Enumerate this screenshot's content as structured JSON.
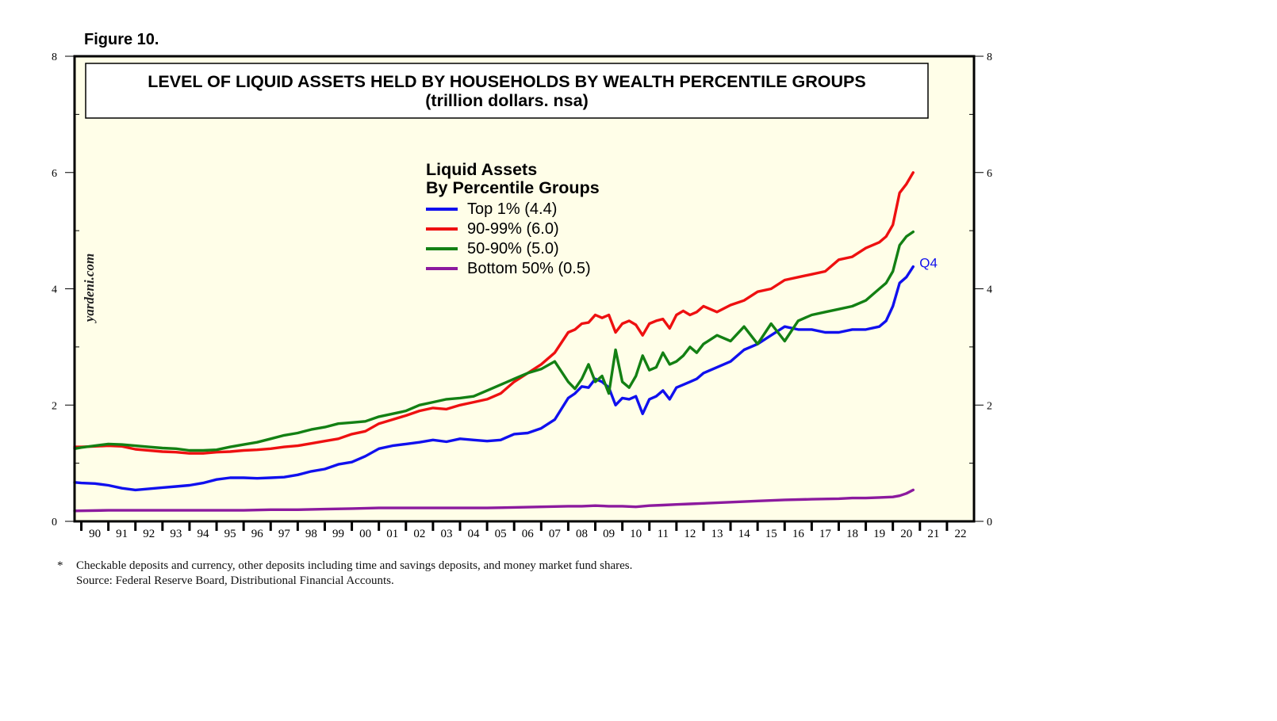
{
  "figure_label": "Figure 10.",
  "watermark": "yardeni.com",
  "footnote": {
    "marker": "*",
    "line1": "Checkable deposits and currency, other deposits including time and savings deposits, and money market fund shares.",
    "line2": "Source: Federal Reserve Board, Distributional Financial Accounts."
  },
  "colors": {
    "plot_background": "#fffee8",
    "top1": "#1010ee",
    "p90_99": "#ee1010",
    "p50_90": "#138013",
    "bottom50": "#8c1a9e"
  },
  "chart_data": {
    "type": "line",
    "title": "LEVEL OF LIQUID ASSETS HELD BY HOUSEHOLDS BY WEALTH PERCENTILE GROUPS",
    "subtitle": "(trillion dollars. nsa)",
    "xlabel": "",
    "ylabel": "",
    "x_start": 1989.75,
    "x_end": 2023.0,
    "ylim": [
      0,
      8
    ],
    "yticks": [
      0,
      2,
      4,
      6,
      8
    ],
    "ytick_labels": [
      "0",
      "2",
      "4",
      "6",
      "8"
    ],
    "xtick_labels": [
      "90",
      "91",
      "92",
      "93",
      "94",
      "95",
      "96",
      "97",
      "98",
      "99",
      "00",
      "01",
      "02",
      "03",
      "04",
      "05",
      "06",
      "07",
      "08",
      "09",
      "10",
      "11",
      "12",
      "13",
      "14",
      "15",
      "16",
      "17",
      "18",
      "19",
      "20",
      "21",
      "22"
    ],
    "legend_title_line1": "Liquid Assets",
    "legend_title_line2": "By Percentile Groups",
    "legend_position": "upper-center",
    "annotation": "Q4",
    "series": [
      {
        "name": "Top 1% (4.4)",
        "color": "#1010ee",
        "t": [
          1989.75,
          1990.0,
          1990.5,
          1991.0,
          1991.5,
          1992.0,
          1992.5,
          1993.0,
          1993.5,
          1994.0,
          1994.5,
          1995.0,
          1995.5,
          1996.0,
          1996.5,
          1997.0,
          1997.5,
          1998.0,
          1998.5,
          1999.0,
          1999.5,
          2000.0,
          2000.5,
          2001.0,
          2001.5,
          2002.0,
          2002.5,
          2003.0,
          2003.5,
          2004.0,
          2004.5,
          2005.0,
          2005.5,
          2006.0,
          2006.5,
          2007.0,
          2007.5,
          2008.0,
          2008.25,
          2008.5,
          2008.75,
          2009.0,
          2009.25,
          2009.5,
          2009.75,
          2010.0,
          2010.25,
          2010.5,
          2010.75,
          2011.0,
          2011.25,
          2011.5,
          2011.75,
          2012.0,
          2012.25,
          2012.5,
          2012.75,
          2013.0,
          2013.5,
          2014.0,
          2014.5,
          2015.0,
          2015.5,
          2016.0,
          2016.5,
          2017.0,
          2017.5,
          2018.0,
          2018.5,
          2019.0,
          2019.5,
          2019.75,
          2020.0,
          2020.25,
          2020.5,
          2020.75
        ],
        "values": [
          0.67,
          0.66,
          0.65,
          0.62,
          0.57,
          0.54,
          0.56,
          0.58,
          0.6,
          0.62,
          0.66,
          0.72,
          0.75,
          0.75,
          0.74,
          0.75,
          0.76,
          0.8,
          0.86,
          0.9,
          0.98,
          1.02,
          1.12,
          1.25,
          1.3,
          1.33,
          1.36,
          1.4,
          1.37,
          1.42,
          1.4,
          1.38,
          1.4,
          1.5,
          1.52,
          1.6,
          1.75,
          2.12,
          2.2,
          2.32,
          2.3,
          2.45,
          2.4,
          2.3,
          2.0,
          2.12,
          2.1,
          2.15,
          1.85,
          2.1,
          2.15,
          2.25,
          2.1,
          2.3,
          2.35,
          2.4,
          2.45,
          2.55,
          2.65,
          2.75,
          2.95,
          3.05,
          3.2,
          3.35,
          3.3,
          3.3,
          3.25,
          3.25,
          3.3,
          3.3,
          3.35,
          3.45,
          3.7,
          4.1,
          4.2,
          4.38
        ]
      },
      {
        "name": "90-99% (6.0)",
        "color": "#ee1010",
        "t": [
          1989.75,
          1990.0,
          1990.5,
          1991.0,
          1991.5,
          1992.0,
          1992.5,
          1993.0,
          1993.5,
          1994.0,
          1994.5,
          1995.0,
          1995.5,
          1996.0,
          1996.5,
          1997.0,
          1997.5,
          1998.0,
          1998.5,
          1999.0,
          1999.5,
          2000.0,
          2000.5,
          2001.0,
          2001.5,
          2002.0,
          2002.5,
          2003.0,
          2003.5,
          2004.0,
          2004.5,
          2005.0,
          2005.5,
          2006.0,
          2006.5,
          2007.0,
          2007.5,
          2008.0,
          2008.25,
          2008.5,
          2008.75,
          2009.0,
          2009.25,
          2009.5,
          2009.75,
          2010.0,
          2010.25,
          2010.5,
          2010.75,
          2011.0,
          2011.25,
          2011.5,
          2011.75,
          2012.0,
          2012.25,
          2012.5,
          2012.75,
          2013.0,
          2013.5,
          2014.0,
          2014.5,
          2015.0,
          2015.5,
          2016.0,
          2016.5,
          2017.0,
          2017.5,
          2018.0,
          2018.5,
          2019.0,
          2019.5,
          2019.75,
          2020.0,
          2020.25,
          2020.5,
          2020.75
        ],
        "values": [
          1.28,
          1.28,
          1.29,
          1.3,
          1.29,
          1.24,
          1.22,
          1.2,
          1.19,
          1.17,
          1.17,
          1.19,
          1.2,
          1.22,
          1.23,
          1.25,
          1.28,
          1.3,
          1.34,
          1.38,
          1.42,
          1.5,
          1.55,
          1.68,
          1.75,
          1.82,
          1.9,
          1.95,
          1.93,
          2.0,
          2.05,
          2.1,
          2.2,
          2.4,
          2.55,
          2.7,
          2.9,
          3.25,
          3.3,
          3.4,
          3.42,
          3.55,
          3.5,
          3.55,
          3.25,
          3.4,
          3.45,
          3.38,
          3.2,
          3.4,
          3.45,
          3.48,
          3.32,
          3.55,
          3.62,
          3.55,
          3.6,
          3.7,
          3.6,
          3.72,
          3.8,
          3.95,
          4.0,
          4.15,
          4.2,
          4.25,
          4.3,
          4.5,
          4.55,
          4.7,
          4.8,
          4.9,
          5.1,
          5.65,
          5.8,
          6.0
        ]
      },
      {
        "name": "50-90% (5.0)",
        "color": "#138013",
        "t": [
          1989.75,
          1990.0,
          1990.5,
          1991.0,
          1991.5,
          1992.0,
          1992.5,
          1993.0,
          1993.5,
          1994.0,
          1994.5,
          1995.0,
          1995.5,
          1996.0,
          1996.5,
          1997.0,
          1997.5,
          1998.0,
          1998.5,
          1999.0,
          1999.5,
          2000.0,
          2000.5,
          2001.0,
          2001.5,
          2002.0,
          2002.5,
          2003.0,
          2003.5,
          2004.0,
          2004.5,
          2005.0,
          2005.5,
          2006.0,
          2006.5,
          2007.0,
          2007.5,
          2008.0,
          2008.25,
          2008.5,
          2008.75,
          2009.0,
          2009.25,
          2009.5,
          2009.75,
          2010.0,
          2010.25,
          2010.5,
          2010.75,
          2011.0,
          2011.25,
          2011.5,
          2011.75,
          2012.0,
          2012.25,
          2012.5,
          2012.75,
          2013.0,
          2013.5,
          2014.0,
          2014.5,
          2015.0,
          2015.5,
          2016.0,
          2016.5,
          2017.0,
          2017.5,
          2018.0,
          2018.5,
          2019.0,
          2019.5,
          2019.75,
          2020.0,
          2020.25,
          2020.5,
          2020.75
        ],
        "values": [
          1.25,
          1.27,
          1.3,
          1.33,
          1.32,
          1.3,
          1.28,
          1.26,
          1.25,
          1.22,
          1.22,
          1.23,
          1.28,
          1.32,
          1.36,
          1.42,
          1.48,
          1.52,
          1.58,
          1.62,
          1.68,
          1.7,
          1.72,
          1.8,
          1.85,
          1.9,
          2.0,
          2.05,
          2.1,
          2.12,
          2.15,
          2.25,
          2.35,
          2.45,
          2.55,
          2.62,
          2.75,
          2.4,
          2.28,
          2.45,
          2.7,
          2.4,
          2.5,
          2.2,
          2.95,
          2.4,
          2.3,
          2.5,
          2.85,
          2.6,
          2.65,
          2.9,
          2.7,
          2.75,
          2.85,
          3.0,
          2.9,
          3.05,
          3.2,
          3.1,
          3.35,
          3.05,
          3.4,
          3.1,
          3.45,
          3.55,
          3.6,
          3.65,
          3.7,
          3.8,
          4.0,
          4.1,
          4.3,
          4.75,
          4.9,
          4.98
        ]
      },
      {
        "name": "Bottom 50% (0.5)",
        "color": "#8c1a9e",
        "t": [
          1989.75,
          1991.0,
          1992.0,
          1993.0,
          1994.0,
          1995.0,
          1996.0,
          1997.0,
          1998.0,
          1999.0,
          2000.0,
          2001.0,
          2002.0,
          2003.0,
          2004.0,
          2005.0,
          2006.0,
          2007.0,
          2008.0,
          2008.5,
          2009.0,
          2009.5,
          2010.0,
          2010.5,
          2011.0,
          2011.5,
          2012.0,
          2012.5,
          2013.0,
          2014.0,
          2015.0,
          2016.0,
          2017.0,
          2018.0,
          2018.5,
          2019.0,
          2019.5,
          2020.0,
          2020.25,
          2020.5,
          2020.75
        ],
        "values": [
          0.18,
          0.19,
          0.19,
          0.19,
          0.19,
          0.19,
          0.19,
          0.2,
          0.2,
          0.21,
          0.22,
          0.23,
          0.23,
          0.23,
          0.23,
          0.23,
          0.24,
          0.25,
          0.26,
          0.26,
          0.27,
          0.26,
          0.26,
          0.25,
          0.27,
          0.28,
          0.29,
          0.3,
          0.31,
          0.33,
          0.35,
          0.37,
          0.38,
          0.39,
          0.4,
          0.4,
          0.41,
          0.42,
          0.44,
          0.48,
          0.54
        ]
      }
    ]
  }
}
